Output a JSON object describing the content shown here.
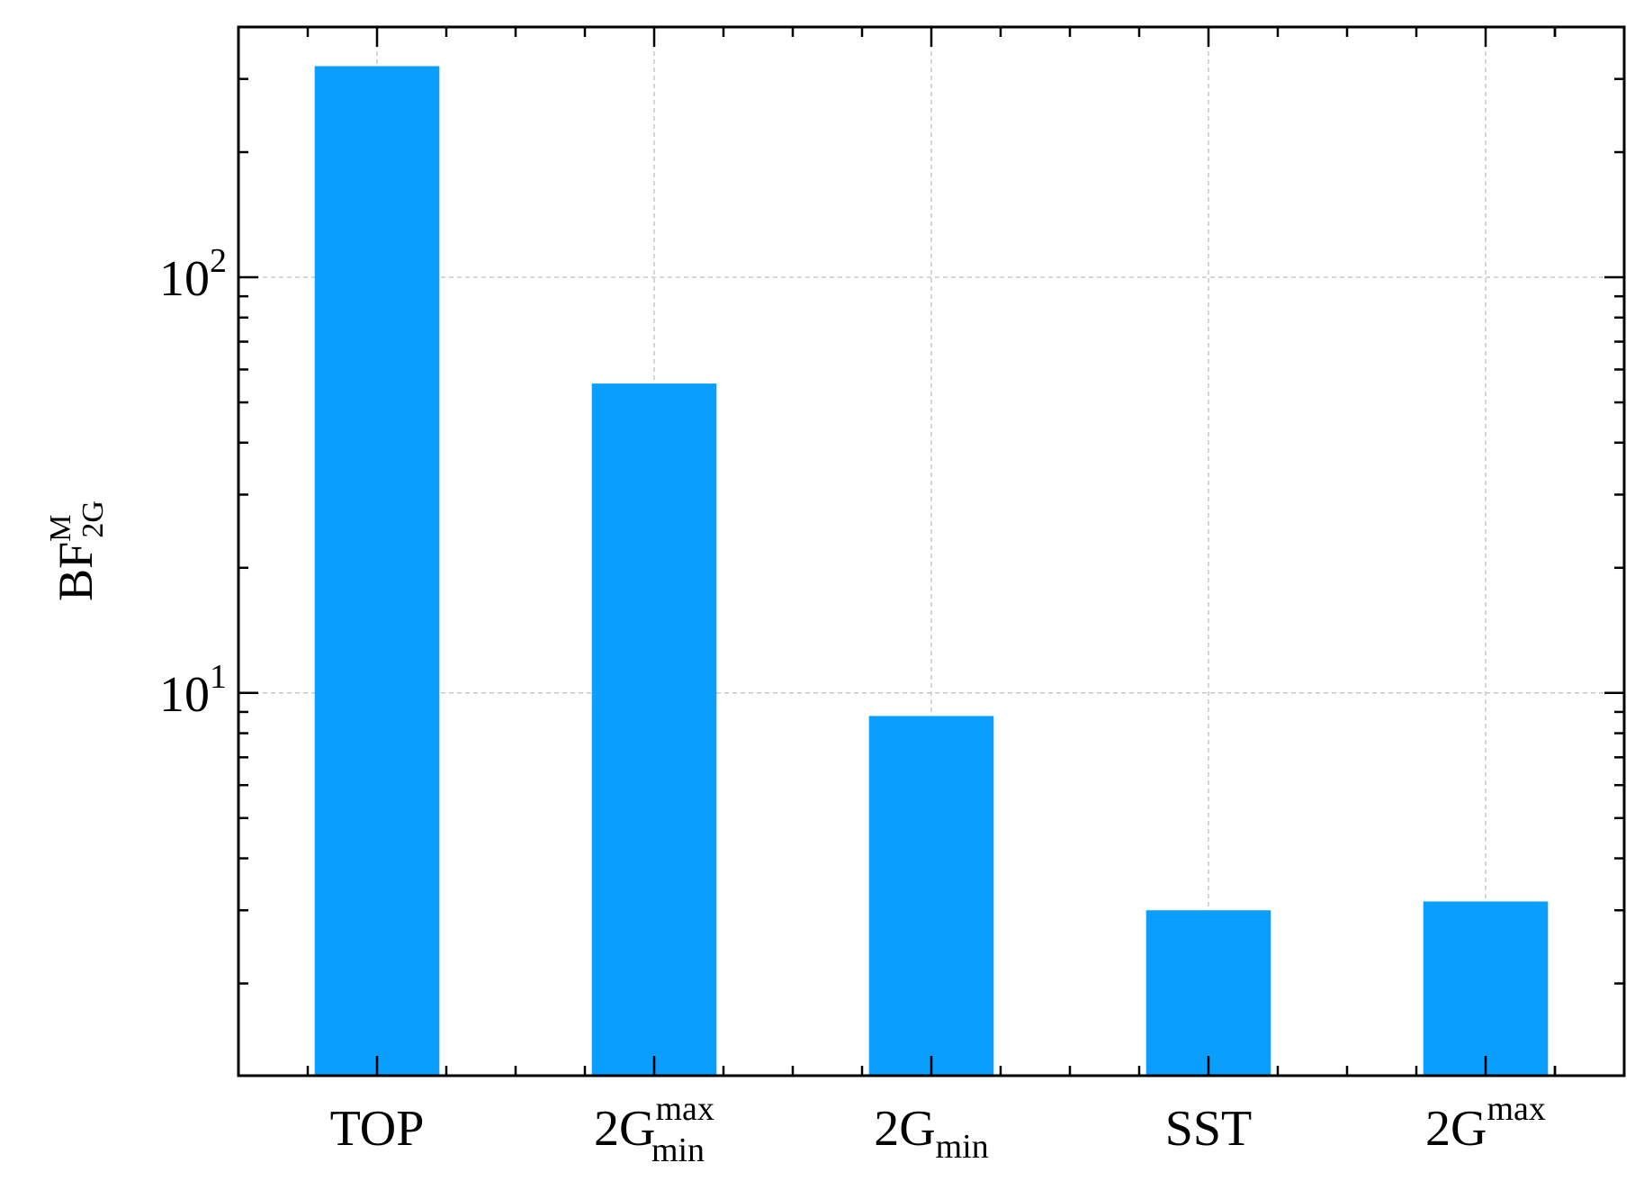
{
  "chart_data": {
    "type": "bar",
    "yscale": "log",
    "ylim": [
      1.2,
      400
    ],
    "grid": true,
    "bar_color": "#0a9efe",
    "categories": [
      {
        "main": "TOP",
        "sub": "",
        "sup": ""
      },
      {
        "main": "2G",
        "sub": "min",
        "sup": "max"
      },
      {
        "main": "2G",
        "sub": "min",
        "sup": ""
      },
      {
        "main": "SST",
        "sub": "",
        "sup": ""
      },
      {
        "main": "2G",
        "sub": "",
        "sup": "max"
      }
    ],
    "values": [
      322,
      55.5,
      8.8,
      3.0,
      3.15
    ],
    "ylabel": {
      "main": "BF",
      "sub": "2G",
      "sup": "M"
    },
    "yticks": [
      {
        "value": 10,
        "base": "10",
        "exp": "1"
      },
      {
        "value": 100,
        "base": "10",
        "exp": "2"
      }
    ]
  }
}
